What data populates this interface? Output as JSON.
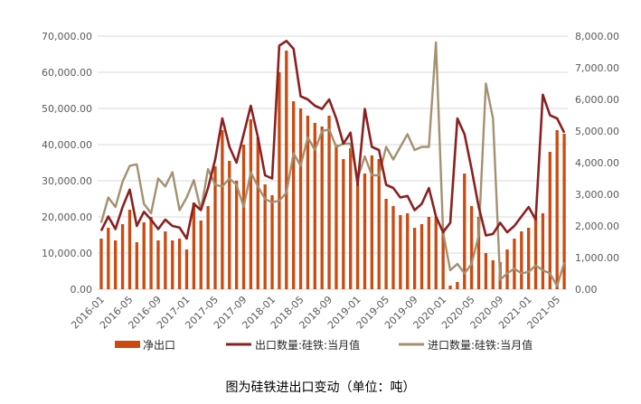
{
  "colors": {
    "net_export": "#cc4a10",
    "export_volume": "#8b2020",
    "import_volume": "#a39170",
    "grid": "#d9d9d9",
    "tick_text": "#595959"
  },
  "caption": "图为硅铁进出口变动（单位：吨）",
  "chart_data": {
    "type": "bar",
    "x": [
      "2016-01",
      "2016-02",
      "2016-03",
      "2016-04",
      "2016-05",
      "2016-06",
      "2016-07",
      "2016-08",
      "2016-09",
      "2016-10",
      "2016-11",
      "2016-12",
      "2017-01",
      "2017-02",
      "2017-03",
      "2017-04",
      "2017-05",
      "2017-06",
      "2017-07",
      "2017-08",
      "2017-09",
      "2017-10",
      "2017-11",
      "2017-12",
      "2018-01",
      "2018-02",
      "2018-03",
      "2018-04",
      "2018-05",
      "2018-06",
      "2018-07",
      "2018-08",
      "2018-09",
      "2018-10",
      "2018-11",
      "2018-12",
      "2019-01",
      "2019-02",
      "2019-03",
      "2019-04",
      "2019-05",
      "2019-06",
      "2019-07",
      "2019-08",
      "2019-09",
      "2019-10",
      "2019-11",
      "2019-12",
      "2020-01",
      "2020-02",
      "2020-03",
      "2020-04",
      "2020-05",
      "2020-06",
      "2020-07",
      "2020-08",
      "2020-09",
      "2020-10",
      "2020-11",
      "2020-12",
      "2021-01",
      "2021-02",
      "2021-03",
      "2021-04",
      "2021-05",
      "2021-06"
    ],
    "x_tick_labels": [
      "2016-01",
      "2016-05",
      "2016-09",
      "2017-01",
      "2017-05",
      "2017-09",
      "2018-01",
      "2018-05",
      "2018-09",
      "2019-01",
      "2019-05",
      "2019-09",
      "2020-01",
      "2020-05",
      "2020-09",
      "2021-01",
      "2021-05"
    ],
    "y_left": {
      "range": [
        0,
        70000
      ],
      "ticks": [
        "0.00",
        "10,000.00",
        "20,000.00",
        "30,000.00",
        "40,000.00",
        "50,000.00",
        "60,000.00",
        "70,000.00"
      ]
    },
    "y_right": {
      "range": [
        0,
        8000
      ],
      "ticks": [
        "0.00",
        "1,000.00",
        "2,000.00",
        "3,000.00",
        "4,000.00",
        "5,000.00",
        "6,000.00",
        "7,000.00",
        "8,000.00"
      ]
    },
    "grid": true,
    "legend_position": "bottom",
    "series": [
      {
        "name": "净出口",
        "type": "bar",
        "axis": "left",
        "values": [
          14000,
          17000,
          13500,
          18000,
          22000,
          13000,
          18500,
          20000,
          13500,
          16000,
          13500,
          14000,
          11000,
          24000,
          19000,
          23000,
          34000,
          44000,
          35500,
          30000,
          40000,
          47000,
          42000,
          29000,
          26000,
          60000,
          66000,
          52000,
          50000,
          48000,
          46000,
          45000,
          48000,
          40000,
          36000,
          39000,
          29000,
          32000,
          37000,
          36000,
          25000,
          23000,
          20500,
          21000,
          17000,
          18000,
          20000,
          20000,
          17000,
          1000,
          2000,
          32000,
          23000,
          20000,
          10000,
          8000,
          7500,
          11000,
          14000,
          16000,
          17000,
          20000,
          21000,
          38000,
          44000,
          43000
        ]
      },
      {
        "name": "出口数量:硅铁:当月值",
        "type": "line",
        "axis": "right",
        "values": [
          1850,
          2300,
          1900,
          2600,
          3150,
          2000,
          2450,
          2200,
          1900,
          2200,
          2000,
          1950,
          1600,
          2700,
          2500,
          3200,
          4100,
          5400,
          4500,
          4000,
          4900,
          5800,
          4800,
          3600,
          3500,
          7700,
          7850,
          7600,
          6100,
          6000,
          5800,
          5700,
          6000,
          5400,
          4600,
          4950,
          3300,
          5700,
          4500,
          4400,
          3300,
          3200,
          2900,
          2950,
          2500,
          2700,
          3200,
          2300,
          1800,
          2100,
          5400,
          4900,
          3800,
          2600,
          1700,
          1750,
          2100,
          1800,
          2000,
          2300,
          2600,
          2200,
          6150,
          5500,
          5400,
          4950
        ]
      },
      {
        "name": "进口数量:硅铁:当月值",
        "type": "line",
        "axis": "right",
        "values": [
          2100,
          2900,
          2600,
          3400,
          3900,
          3950,
          2700,
          2400,
          3500,
          3250,
          3700,
          2500,
          2900,
          3450,
          2500,
          3800,
          3300,
          3250,
          3500,
          3300,
          2600,
          3700,
          3250,
          2850,
          2750,
          2800,
          3050,
          4300,
          3900,
          4800,
          4400,
          5000,
          5050,
          4500,
          4600,
          4600,
          3500,
          4200,
          3600,
          3600,
          4500,
          4100,
          4500,
          4900,
          4400,
          4500,
          4500,
          7800,
          1800,
          600,
          800,
          500,
          800,
          1700,
          6500,
          5400,
          300,
          500,
          650,
          500,
          550,
          750,
          600,
          500,
          100,
          850
        ]
      }
    ]
  }
}
